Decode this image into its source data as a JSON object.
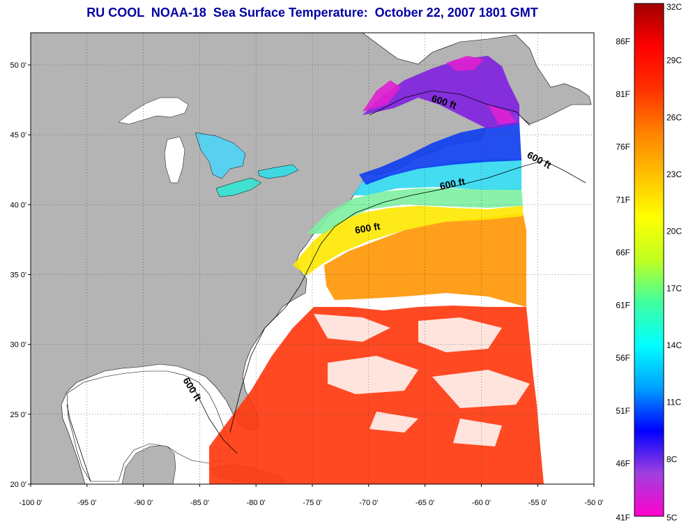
{
  "title": "RU COOL  NOAA-18  Sea Surface Temperature:  October 22, 2007 1801 GMT",
  "map": {
    "lon_range": [
      -100,
      -50
    ],
    "lat_range": [
      20,
      52.3
    ],
    "lon_ticks": [
      "-100 0'",
      "-95 0'",
      "-90 0'",
      "-85 0'",
      "-80 0'",
      "-75 0'",
      "-70 0'",
      "-65 0'",
      "-60 0'",
      "-55 0'",
      "-50 0'"
    ],
    "lon_tick_values": [
      -100,
      -95,
      -90,
      -85,
      -80,
      -75,
      -70,
      -65,
      -60,
      -55,
      -50
    ],
    "lat_ticks": [
      "20 0'",
      "25 0'",
      "30 0'",
      "35 0'",
      "40 0'",
      "45 0'",
      "50 0'"
    ],
    "lat_tick_values": [
      20,
      25,
      30,
      35,
      40,
      45,
      50
    ],
    "grid": true,
    "land_color": "#b4b4b4",
    "cloud_color": "#ffffff",
    "contour_labels": [
      "600 ft",
      "600 ft",
      "600 ft",
      "600 ft",
      "600 ft"
    ]
  },
  "colorbar": {
    "temp_c_range": [
      5,
      32
    ],
    "celsius_labels": [
      "32C",
      "29C",
      "26C",
      "23C",
      "20C",
      "17C",
      "14C",
      "11C",
      "8C",
      "5C"
    ],
    "celsius_values": [
      32,
      29,
      26,
      23,
      20,
      17,
      14,
      11,
      8,
      5
    ],
    "fahrenheit_labels": [
      "86F",
      "81F",
      "76F",
      "71F",
      "66F",
      "61F",
      "56F",
      "51F",
      "46F",
      "41F"
    ],
    "fahrenheit_values": [
      86,
      81,
      76,
      71,
      66,
      61,
      56,
      51,
      46,
      41
    ],
    "colors": [
      "#ff00cc",
      "#a040e0",
      "#0000ff",
      "#00a0ff",
      "#00ffff",
      "#40ffa0",
      "#c0ff20",
      "#ffff00",
      "#ffc000",
      "#ff8000",
      "#ff3000",
      "#ff0000",
      "#a00000"
    ]
  }
}
